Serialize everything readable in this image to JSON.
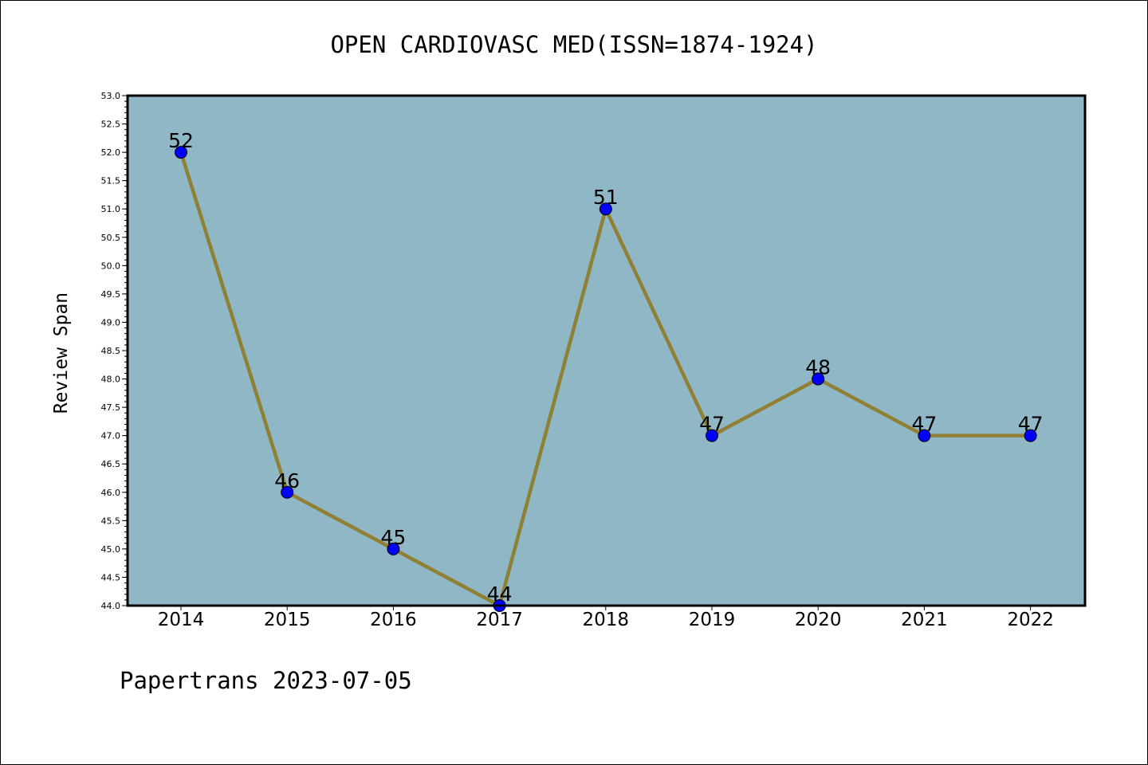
{
  "chart_data": {
    "type": "line",
    "title": "OPEN CARDIOVASC MED(ISSN=1874-1924)",
    "ylabel": "Review Span",
    "xlabel": "",
    "categories": [
      "2014",
      "2015",
      "2016",
      "2017",
      "2018",
      "2019",
      "2020",
      "2021",
      "2022"
    ],
    "series": [
      {
        "values": [
          52,
          46,
          45,
          44,
          51,
          47,
          48,
          47,
          47
        ]
      }
    ],
    "ylim": [
      44.0,
      53.0
    ],
    "y_major_ticks": [
      "44.0",
      "44.5",
      "45.0",
      "45.5",
      "46.0",
      "46.5",
      "47.0",
      "47.5",
      "48.0",
      "48.5",
      "49.0",
      "49.5",
      "50.0",
      "50.5",
      "51.0",
      "51.5",
      "52.0",
      "52.5",
      "53.0"
    ],
    "grid": false,
    "legend": "none",
    "data_labels": true,
    "colors": {
      "plot_background": "#8fb7c5",
      "line": "#8f8035",
      "marker": "#0000ff",
      "axes": "#000000"
    }
  },
  "footer": "Papertrans 2023-07-05"
}
